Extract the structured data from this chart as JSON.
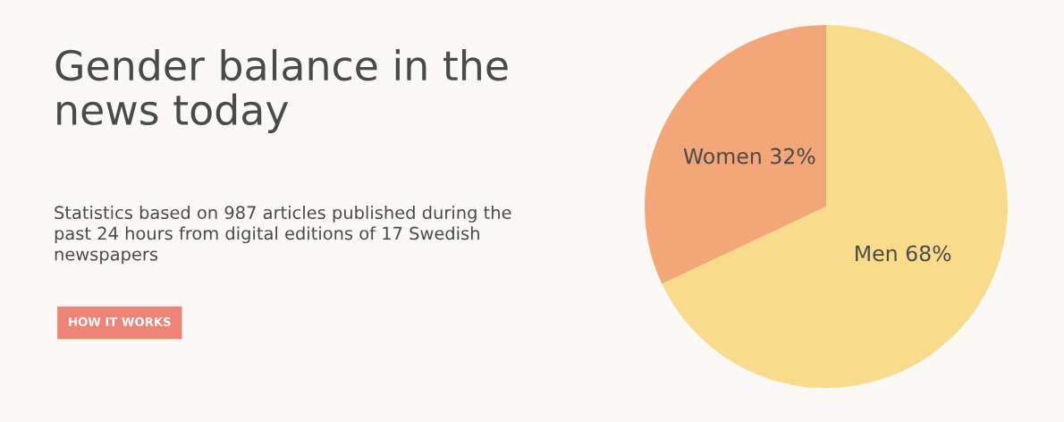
{
  "chart_data": {
    "type": "pie",
    "title": "Gender balance in the news today",
    "subtitle": "Statistics based on 987 articles published during the past 24 hours from digital editions of 17 Swedish newspapers",
    "annotations": [
      "HOW IT WORKS"
    ],
    "categories": [
      "Men",
      "Women"
    ],
    "values": [
      68,
      32
    ],
    "value_labels": [
      "68%",
      "32%"
    ],
    "colors": [
      "#f8dc8c",
      "#f3a677"
    ],
    "legend": false
  }
}
